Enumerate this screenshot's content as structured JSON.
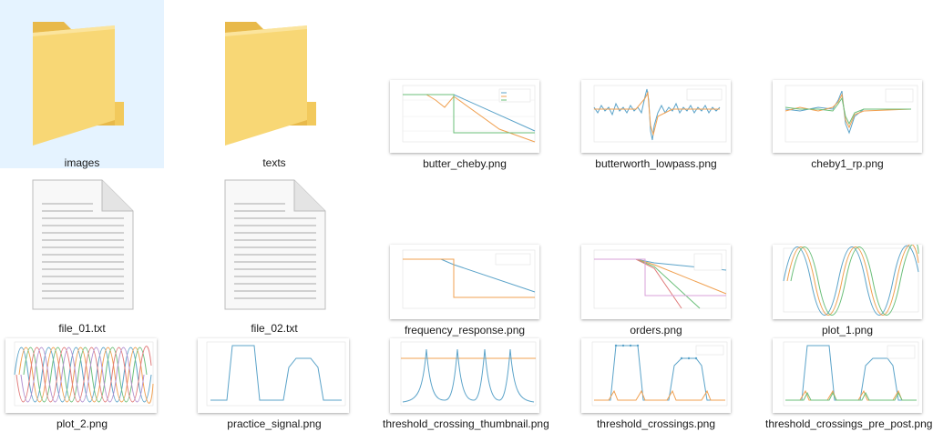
{
  "items": [
    {
      "name": "images",
      "kind": "folder"
    },
    {
      "name": "texts",
      "kind": "folder"
    },
    {
      "name": "butter_cheby.png",
      "kind": "image"
    },
    {
      "name": "butterworth_lowpass.png",
      "kind": "image"
    },
    {
      "name": "cheby1_rp.png",
      "kind": "image"
    },
    {
      "name": "file_01.txt",
      "kind": "text"
    },
    {
      "name": "file_02.txt",
      "kind": "text"
    },
    {
      "name": "frequency_response.png",
      "kind": "image"
    },
    {
      "name": "orders.png",
      "kind": "image"
    },
    {
      "name": "plot_1.png",
      "kind": "image"
    },
    {
      "name": "plot_2.png",
      "kind": "image"
    },
    {
      "name": "practice_signal.png",
      "kind": "image"
    },
    {
      "name": "threshold_crossing_thumbnail.png",
      "kind": "image"
    },
    {
      "name": "threshold_crossings.png",
      "kind": "image"
    },
    {
      "name": "threshold_crossings_pre_post.png",
      "kind": "image"
    }
  ],
  "selected_item": "images",
  "colors": {
    "folder_front": "#f8d775",
    "folder_back": "#e8b94a",
    "selection": "#e5f3ff",
    "series_blue": "#5ba3c9",
    "series_orange": "#f0a050",
    "series_green": "#6bbf7a"
  }
}
